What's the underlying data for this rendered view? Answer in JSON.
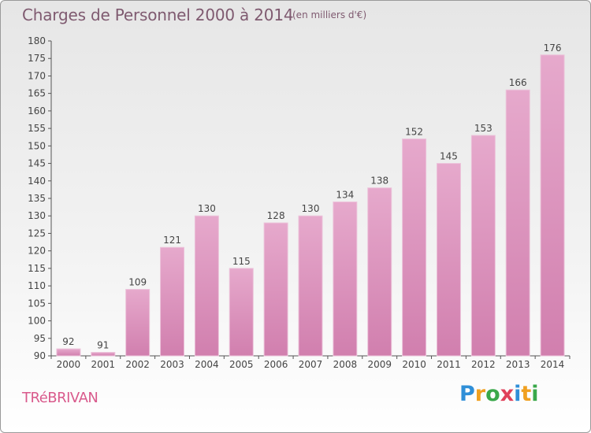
{
  "header": {
    "title": "Charges de Personnel 2000 à 2014",
    "subtitle": "(en milliers d'€)"
  },
  "footer": {
    "commune": "TRéBRIVAN",
    "logo_text": "Proxiti",
    "logo_colors": [
      "#2f8fd8",
      "#f0a020",
      "#3aa84a",
      "#e0405a",
      "#2f8fd8",
      "#f0a020",
      "#3aa84a"
    ]
  },
  "colors": {
    "bar_fill": "#d17fae",
    "bar_top": "#e6a9cc",
    "bar_edge": "#ecc3da",
    "axis": "#555555",
    "text": "#444444"
  },
  "chart_data": {
    "type": "bar",
    "categories": [
      "2000",
      "2001",
      "2002",
      "2003",
      "2004",
      "2005",
      "2006",
      "2007",
      "2008",
      "2009",
      "2010",
      "2011",
      "2012",
      "2013",
      "2014"
    ],
    "values": [
      92,
      91,
      109,
      121,
      130,
      115,
      128,
      130,
      134,
      138,
      152,
      145,
      153,
      166,
      176
    ],
    "data_labels": [
      "92",
      "91",
      "109",
      "121",
      "130",
      "115",
      "128",
      "130",
      "134",
      "138",
      "152",
      "145",
      "153",
      "166",
      "176"
    ],
    "title": "Charges de Personnel 2000 à 2014",
    "subtitle": "(en milliers d'€)",
    "xlabel": "",
    "ylabel": "",
    "ylim": [
      90,
      180
    ],
    "yticks": [
      90,
      95,
      100,
      105,
      110,
      115,
      120,
      125,
      130,
      135,
      140,
      145,
      150,
      155,
      160,
      165,
      170,
      175,
      180
    ],
    "grid": false,
    "legend": "none"
  }
}
